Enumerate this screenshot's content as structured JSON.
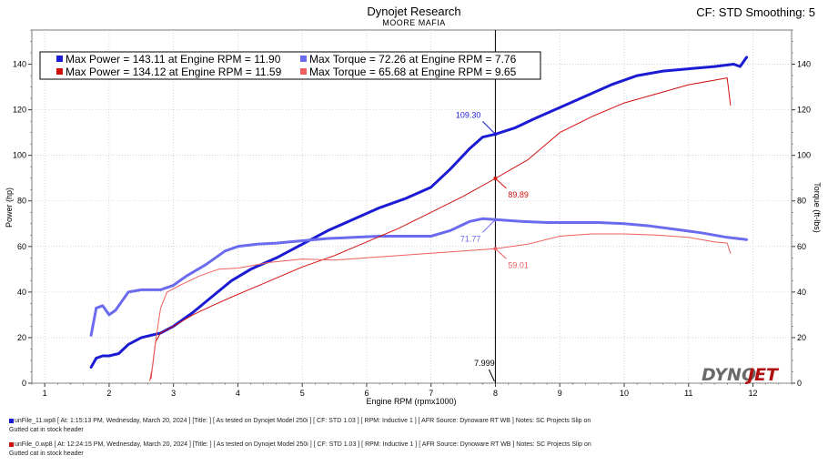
{
  "header": {
    "title": "Dynojet Research",
    "subtitle": "MOORE MAFIA",
    "cf_label": "CF: STD Smoothing: 5"
  },
  "legend": [
    {
      "text": "Max Power = 143.11 at Engine RPM = 11.90",
      "color": "#1b1bd4"
    },
    {
      "text": "Max Torque = 72.26 at Engine RPM = 7.76",
      "color": "#6b6bef"
    },
    {
      "text": "Max Power = 134.12 at Engine RPM = 11.59",
      "color": "#d10f0f"
    },
    {
      "text": "Max Torque = 65.68 at Engine RPM = 9.65",
      "color": "#ef5f5f"
    }
  ],
  "files": [
    {
      "line1": "unFile_11.wp8 [ At:  1:15:13 PM, Wednesday, March 20, 2024 ] [Title: ]  [ As tested on Dynojet Model 250i ] [ CF: STD 1.03 ] [ RPM: Inductive 1 ] [ AFR Source: Dynoware RT WB ] Notes: SC Projects Slip on",
      "line2": "Gutted cat in stock header",
      "color": "#1b1bd4"
    },
    {
      "line1": "unFile_0.wp8 [ At: 12:24:15 PM, Wednesday, March 20, 2024 ] [Title: ]  [ As tested on Dynojet Model 250i ] [ CF: STD 1.03 ] [ RPM: Inductive 1 ] [ AFR Source: Dynoware RT WB ] Notes: SC Projects Slip on",
      "line2": "Gutted cat in stock header",
      "color": "#d10f0f"
    }
  ],
  "watermark": {
    "dyno": "DYNO",
    "jet": "JET"
  },
  "chart_data": {
    "type": "line",
    "xlabel": "Engine RPM (rpmx1000)",
    "ylabel": "Power (hp)",
    "y2label": "Torque (ft-lbs)",
    "xlim": [
      0.8,
      12.6
    ],
    "ylim": [
      0,
      155
    ],
    "y2lim": [
      0,
      155
    ],
    "xticks": [
      1,
      2,
      3,
      4,
      5,
      6,
      7,
      8,
      9,
      10,
      11,
      12
    ],
    "yticks": [
      0,
      20,
      40,
      60,
      80,
      100,
      120,
      140
    ],
    "grid": true,
    "cursor": {
      "x": 7.999,
      "label": "7.999"
    },
    "annotations": [
      {
        "text": "109.30",
        "x": 7.999,
        "y": 109.3,
        "color": "#1b1bd4",
        "side": "above-left"
      },
      {
        "text": "89.89",
        "x": 7.999,
        "y": 89.89,
        "color": "#d10f0f",
        "side": "below-right"
      },
      {
        "text": "71.77",
        "x": 7.999,
        "y": 71.77,
        "color": "#6b6bef",
        "side": "below-left"
      },
      {
        "text": "59.01",
        "x": 7.999,
        "y": 59.01,
        "color": "#ef5f5f",
        "side": "below-right"
      }
    ],
    "series": [
      {
        "name": "Power run 11",
        "axis": "hp",
        "color": "#1b1bd4",
        "width": 3,
        "x": [
          1.72,
          1.8,
          1.9,
          2.0,
          2.15,
          2.3,
          2.5,
          2.8,
          3.0,
          3.3,
          3.6,
          3.9,
          4.2,
          4.6,
          5.0,
          5.4,
          5.8,
          6.2,
          6.6,
          7.0,
          7.3,
          7.6,
          7.8,
          8.0,
          8.3,
          8.6,
          9.0,
          9.4,
          9.8,
          10.2,
          10.6,
          11.0,
          11.4,
          11.7,
          11.8,
          11.9
        ],
        "y": [
          7,
          11,
          12,
          12,
          13,
          17,
          20,
          22,
          25,
          31,
          38,
          45,
          50,
          55,
          61,
          67,
          72,
          77,
          81,
          86,
          94,
          103,
          108,
          109.3,
          112,
          116,
          121,
          126,
          131,
          135,
          137,
          138,
          139,
          140,
          139,
          143
        ]
      },
      {
        "name": "Torque run 11",
        "axis": "ft-lbs",
        "color": "#6b6bef",
        "width": 3,
        "x": [
          1.72,
          1.8,
          1.9,
          2.0,
          2.1,
          2.3,
          2.5,
          2.8,
          3.0,
          3.2,
          3.5,
          3.8,
          4.0,
          4.3,
          4.6,
          5.0,
          5.4,
          5.8,
          6.2,
          6.6,
          7.0,
          7.3,
          7.6,
          7.8,
          8.0,
          8.4,
          8.8,
          9.2,
          9.6,
          10.0,
          10.4,
          10.8,
          11.2,
          11.6,
          11.9
        ],
        "y": [
          21,
          33,
          34,
          30,
          32,
          40,
          41,
          41,
          43,
          47,
          52,
          58,
          60,
          61,
          61.5,
          62.5,
          63.5,
          64,
          64.5,
          64.5,
          64.5,
          67,
          71,
          72.2,
          71.8,
          71,
          70.5,
          70.5,
          70.5,
          70,
          69,
          67.5,
          66,
          64,
          63
        ]
      },
      {
        "name": "Power run 0",
        "axis": "hp",
        "color": "#d10f0f",
        "width": 1,
        "x": [
          2.65,
          2.72,
          2.8,
          3.0,
          3.3,
          3.6,
          4.0,
          4.5,
          5.0,
          5.5,
          6.0,
          6.5,
          7.0,
          7.5,
          8.0,
          8.5,
          9.0,
          9.5,
          10.0,
          10.5,
          11.0,
          11.4,
          11.6,
          11.65
        ],
        "y": [
          2,
          18,
          22,
          25,
          30,
          34,
          39,
          45,
          51,
          56,
          62,
          68,
          75,
          82,
          89.9,
          98,
          110,
          117,
          123,
          127,
          131,
          133,
          134,
          122
        ]
      },
      {
        "name": "Torque run 0",
        "axis": "ft-lbs",
        "color": "#ef5f5f",
        "width": 1,
        "x": [
          2.63,
          2.68,
          2.72,
          2.8,
          2.9,
          3.1,
          3.4,
          3.7,
          4.0,
          4.5,
          5.0,
          5.5,
          6.0,
          6.5,
          7.0,
          7.5,
          8.0,
          8.5,
          9.0,
          9.5,
          10.0,
          10.5,
          11.0,
          11.4,
          11.6,
          11.65
        ],
        "y": [
          1,
          8,
          18,
          33,
          40,
          43,
          47,
          50,
          50.5,
          53,
          54.5,
          54,
          55,
          56,
          57,
          58,
          59,
          61,
          64.5,
          65.5,
          65.5,
          65,
          64,
          62,
          61.5,
          57
        ]
      }
    ]
  }
}
